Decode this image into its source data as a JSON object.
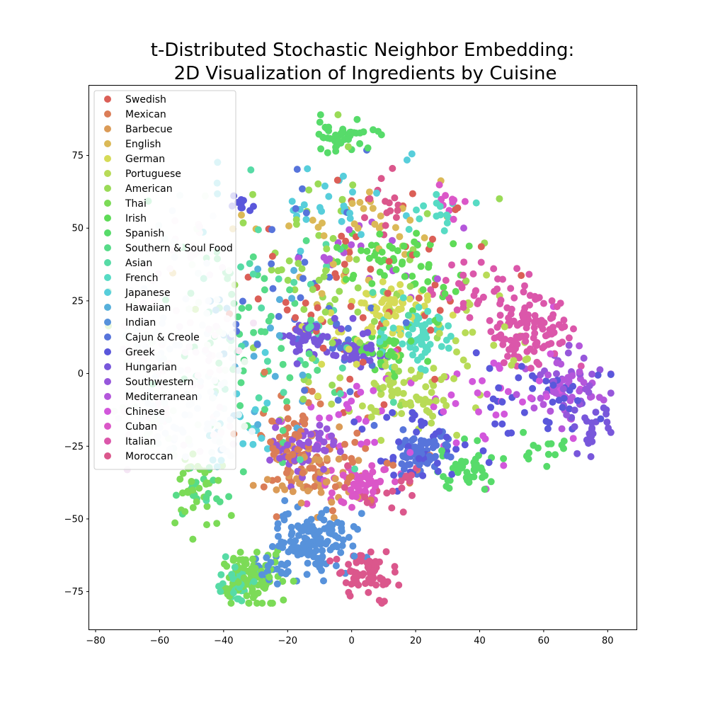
{
  "chart_data": {
    "type": "scatter",
    "title_lines": [
      "t-Distributed Stochastic Neighbor Embedding:",
      "2D Visualization of Ingredients by Cuisine"
    ],
    "xlabel": "",
    "ylabel": "",
    "xlim": [
      -82,
      89
    ],
    "ylim": [
      -88,
      99
    ],
    "xticks": [
      -80,
      -60,
      -40,
      -20,
      0,
      20,
      40,
      60,
      80
    ],
    "yticks": [
      -75,
      -50,
      -25,
      0,
      25,
      50,
      75
    ],
    "grid": false,
    "legend_position": "upper-left",
    "series": [
      {
        "name": "Swedish",
        "color": "#db5f57",
        "clusters": [
          {
            "x": 3,
            "y": 30,
            "sx": 20,
            "sy": 18,
            "n": 60
          }
        ]
      },
      {
        "name": "Mexican",
        "color": "#db7d57",
        "clusters": [
          {
            "x": -18,
            "y": -25,
            "sx": 6,
            "sy": 10,
            "n": 70
          },
          {
            "x": -2,
            "y": -30,
            "sx": 10,
            "sy": 8,
            "n": 30
          }
        ]
      },
      {
        "name": "Barbecue",
        "color": "#db9b57",
        "clusters": [
          {
            "x": -12,
            "y": -35,
            "sx": 8,
            "sy": 6,
            "n": 50
          }
        ]
      },
      {
        "name": "English",
        "color": "#dbb957",
        "clusters": [
          {
            "x": -5,
            "y": 50,
            "sx": 15,
            "sy": 10,
            "n": 40
          }
        ]
      },
      {
        "name": "German",
        "color": "#d6db57",
        "clusters": [
          {
            "x": 12,
            "y": 22,
            "sx": 6,
            "sy": 5,
            "n": 45
          },
          {
            "x": 0,
            "y": 15,
            "sx": 10,
            "sy": 8,
            "n": 30
          }
        ]
      },
      {
        "name": "Portuguese",
        "color": "#b8db57",
        "clusters": [
          {
            "x": 15,
            "y": -8,
            "sx": 10,
            "sy": 5,
            "n": 60
          },
          {
            "x": 35,
            "y": 10,
            "sx": 12,
            "sy": 10,
            "n": 30
          }
        ]
      },
      {
        "name": "American",
        "color": "#9adb57",
        "clusters": [
          {
            "x": -10,
            "y": 35,
            "sx": 22,
            "sy": 22,
            "n": 70
          }
        ]
      },
      {
        "name": "Thai",
        "color": "#7cdb57",
        "clusters": [
          {
            "x": -32,
            "y": -70,
            "sx": 5,
            "sy": 5,
            "n": 90
          },
          {
            "x": -48,
            "y": -40,
            "sx": 5,
            "sy": 6,
            "n": 40
          }
        ]
      },
      {
        "name": "Irish",
        "color": "#5edb57",
        "clusters": [
          {
            "x": 10,
            "y": 40,
            "sx": 8,
            "sy": 5,
            "n": 40
          },
          {
            "x": 10,
            "y": 7,
            "sx": 4,
            "sy": 4,
            "n": 35
          },
          {
            "x": 25,
            "y": 30,
            "sx": 8,
            "sy": 8,
            "n": 20
          }
        ]
      },
      {
        "name": "Spanish",
        "color": "#57db6a",
        "clusters": [
          {
            "x": -2,
            "y": 82,
            "sx": 5,
            "sy": 2.5,
            "n": 45
          },
          {
            "x": 35,
            "y": -33,
            "sx": 4,
            "sy": 4,
            "n": 45
          },
          {
            "x": 60,
            "y": -27,
            "sx": 4,
            "sy": 3,
            "n": 15
          }
        ]
      },
      {
        "name": "Southern & Soul Food",
        "color": "#57db88",
        "clusters": [
          {
            "x": -30,
            "y": 10,
            "sx": 16,
            "sy": 20,
            "n": 70
          },
          {
            "x": -48,
            "y": -42,
            "sx": 4,
            "sy": 5,
            "n": 15
          }
        ]
      },
      {
        "name": "Asian",
        "color": "#57dba6",
        "clusters": [
          {
            "x": -20,
            "y": 15,
            "sx": 20,
            "sy": 20,
            "n": 40
          },
          {
            "x": -35,
            "y": -72,
            "sx": 4,
            "sy": 4,
            "n": 30
          }
        ]
      },
      {
        "name": "French",
        "color": "#57dbc4",
        "clusters": [
          {
            "x": 22,
            "y": 14,
            "sx": 5,
            "sy": 5,
            "n": 60
          },
          {
            "x": 28,
            "y": 55,
            "sx": 5,
            "sy": 4,
            "n": 15
          }
        ]
      },
      {
        "name": "Japanese",
        "color": "#57cedb",
        "clusters": [
          {
            "x": -10,
            "y": 60,
            "sx": 15,
            "sy": 8,
            "n": 30
          },
          {
            "x": -35,
            "y": -20,
            "sx": 6,
            "sy": 8,
            "n": 20
          }
        ]
      },
      {
        "name": "Hawaiian",
        "color": "#57b0db",
        "clusters": [
          {
            "x": -30,
            "y": 5,
            "sx": 10,
            "sy": 20,
            "n": 30
          }
        ]
      },
      {
        "name": "Indian",
        "color": "#5792db",
        "clusters": [
          {
            "x": -12,
            "y": -58,
            "sx": 6,
            "sy": 5,
            "n": 120
          },
          {
            "x": -22,
            "y": -68,
            "sx": 4,
            "sy": 4,
            "n": 25
          }
        ]
      },
      {
        "name": "Cajun & Creole",
        "color": "#5774db",
        "clusters": [
          {
            "x": 22,
            "y": -27,
            "sx": 4,
            "sy": 4,
            "n": 70
          },
          {
            "x": -10,
            "y": 20,
            "sx": 15,
            "sy": 20,
            "n": 40
          }
        ]
      },
      {
        "name": "Greek",
        "color": "#5a57db",
        "clusters": [
          {
            "x": 22,
            "y": -25,
            "sx": 8,
            "sy": 8,
            "n": 40
          },
          {
            "x": 60,
            "y": -10,
            "sx": 10,
            "sy": 8,
            "n": 40
          },
          {
            "x": -35,
            "y": 58,
            "sx": 3,
            "sy": 2,
            "n": 10
          }
        ]
      },
      {
        "name": "Hungarian",
        "color": "#7857db",
        "clusters": [
          {
            "x": -12,
            "y": 12,
            "sx": 5,
            "sy": 4,
            "n": 45
          },
          {
            "x": 2,
            "y": 8,
            "sx": 5,
            "sy": 4,
            "n": 35
          },
          {
            "x": 75,
            "y": -18,
            "sx": 3,
            "sy": 4,
            "n": 25
          }
        ]
      },
      {
        "name": "Southwestern",
        "color": "#9657db",
        "clusters": [
          {
            "x": -15,
            "y": -25,
            "sx": 5,
            "sy": 5,
            "n": 60
          },
          {
            "x": 70,
            "y": -5,
            "sx": 6,
            "sy": 6,
            "n": 25
          }
        ]
      },
      {
        "name": "Mediterranean",
        "color": "#b457db",
        "clusters": [
          {
            "x": 65,
            "y": -5,
            "sx": 6,
            "sy": 5,
            "n": 45
          },
          {
            "x": 5,
            "y": 40,
            "sx": 12,
            "sy": 10,
            "n": 20
          }
        ]
      },
      {
        "name": "Chinese",
        "color": "#d257db",
        "clusters": [
          {
            "x": 45,
            "y": -10,
            "sx": 15,
            "sy": 10,
            "n": 40
          },
          {
            "x": 0,
            "y": -15,
            "sx": 12,
            "sy": 10,
            "n": 20
          }
        ]
      },
      {
        "name": "Cuban",
        "color": "#db57c8",
        "clusters": [
          {
            "x": 3,
            "y": -38,
            "sx": 5,
            "sy": 4,
            "n": 60
          },
          {
            "x": 30,
            "y": 58,
            "sx": 3,
            "sy": 3,
            "n": 10
          }
        ]
      },
      {
        "name": "Italian",
        "color": "#db57aa",
        "clusters": [
          {
            "x": 55,
            "y": 15,
            "sx": 7,
            "sy": 6,
            "n": 110
          },
          {
            "x": 40,
            "y": 30,
            "sx": 8,
            "sy": 6,
            "n": 30
          }
        ]
      },
      {
        "name": "Moroccan",
        "color": "#db578c",
        "clusters": [
          {
            "x": 5,
            "y": -68,
            "sx": 4,
            "sy": 4,
            "n": 70
          },
          {
            "x": 10,
            "y": -40,
            "sx": 6,
            "sy": 5,
            "n": 20
          },
          {
            "x": 10,
            "y": 60,
            "sx": 4,
            "sy": 6,
            "n": 15
          }
        ]
      }
    ],
    "pale_overlay": {
      "colors": [
        "#eef6fb",
        "#f5e6f5",
        "#e8f7ec",
        "#e7f1fa",
        "#f8e8f2",
        "#e3f4f6"
      ],
      "clusters": [
        {
          "x": -45,
          "y": 5,
          "sx": 6,
          "sy": 18,
          "n": 80
        },
        {
          "x": -62,
          "y": 0,
          "sx": 6,
          "sy": 14,
          "n": 80
        },
        {
          "x": -52,
          "y": 45,
          "sx": 5,
          "sy": 6,
          "n": 30
        },
        {
          "x": -45,
          "y": -22,
          "sx": 5,
          "sy": 5,
          "n": 25
        },
        {
          "x": -60,
          "y": -15,
          "sx": 4,
          "sy": 5,
          "n": 25
        }
      ]
    }
  }
}
